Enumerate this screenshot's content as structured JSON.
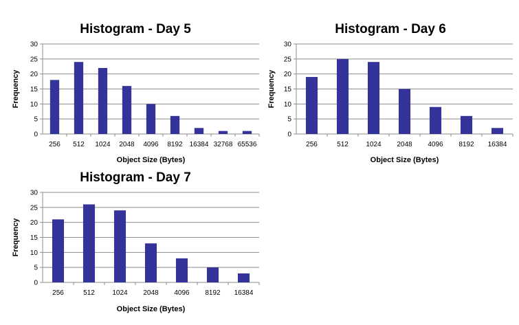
{
  "chart_data": [
    {
      "type": "bar",
      "title": "Histogram - Day 5",
      "xlabel": "Object Size (Bytes)",
      "ylabel": "Frequency",
      "ylim": [
        0,
        30
      ],
      "yticks": [
        "0",
        "5",
        "10",
        "15",
        "20",
        "25",
        "30"
      ],
      "categories": [
        "256",
        "512",
        "1024",
        "2048",
        "4096",
        "8192",
        "16384",
        "32768",
        "65536"
      ],
      "values": [
        18,
        24,
        22,
        16,
        10,
        6,
        2,
        1,
        1
      ],
      "grid": true,
      "bar_color": "#333399"
    },
    {
      "type": "bar",
      "title": "Histogram - Day 6",
      "xlabel": "Object Size (Bytes)",
      "ylabel": "Frequency",
      "ylim": [
        0,
        30
      ],
      "yticks": [
        "0",
        "5",
        "10",
        "15",
        "20",
        "25",
        "30"
      ],
      "categories": [
        "256",
        "512",
        "1024",
        "2048",
        "4096",
        "8192",
        "16384"
      ],
      "values": [
        19,
        25,
        24,
        15,
        9,
        6,
        2
      ],
      "grid": true,
      "bar_color": "#333399"
    },
    {
      "type": "bar",
      "title": "Histogram - Day 7",
      "xlabel": "Object Size (Bytes)",
      "ylabel": "Frequency",
      "ylim": [
        0,
        30
      ],
      "yticks": [
        "0",
        "5",
        "10",
        "15",
        "20",
        "25",
        "30"
      ],
      "categories": [
        "256",
        "512",
        "1024",
        "2048",
        "4096",
        "8192",
        "16384"
      ],
      "values": [
        21,
        26,
        24,
        13,
        8,
        5,
        3
      ],
      "grid": true,
      "bar_color": "#333399"
    }
  ]
}
